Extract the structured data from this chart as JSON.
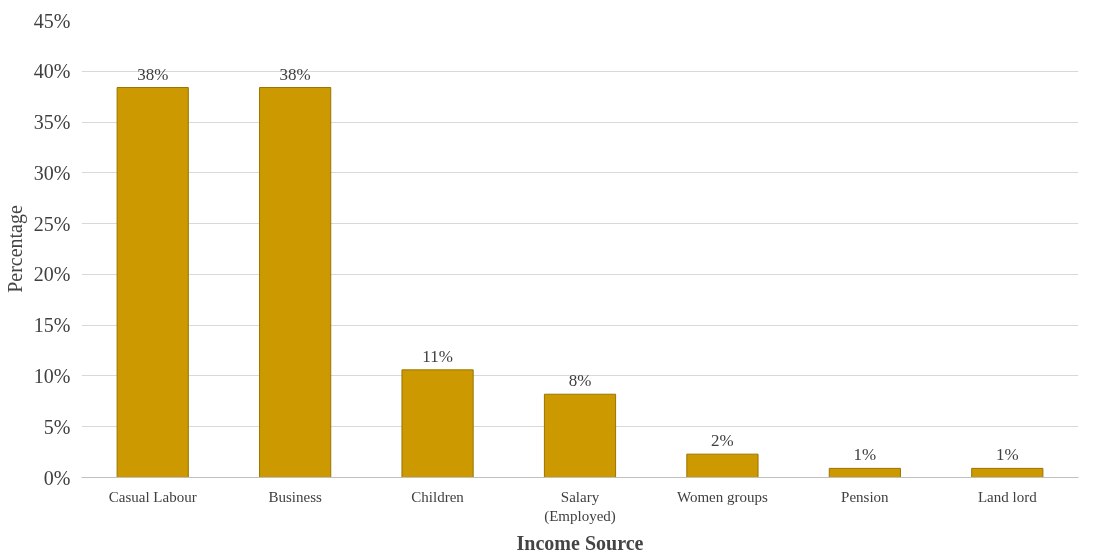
{
  "chart_data": {
    "type": "bar",
    "xlabel": "Income Source",
    "ylabel": "Percentage",
    "categories": [
      "Casual Labour",
      "Business",
      "Children",
      "Salary\n(Employed)",
      "Women groups",
      "Pension",
      "Land lord"
    ],
    "values": [
      38.4,
      38.4,
      10.6,
      8.2,
      2.3,
      0.9,
      0.9
    ],
    "value_labels": [
      "38%",
      "38%",
      "11%",
      "8%",
      "2%",
      "1%",
      "1%"
    ],
    "color": "#cc9900",
    "ylim": [
      0,
      45
    ],
    "yticks": [
      {
        "value": 0,
        "label": "0%"
      },
      {
        "value": 5,
        "label": "5%"
      },
      {
        "value": 10,
        "label": "10%"
      },
      {
        "value": 15,
        "label": "15%"
      },
      {
        "value": 20,
        "label": "20%"
      },
      {
        "value": 25,
        "label": "25%"
      },
      {
        "value": 30,
        "label": "30%"
      },
      {
        "value": 35,
        "label": "35%"
      },
      {
        "value": 40,
        "label": "40%"
      },
      {
        "value": 45,
        "label": "45%"
      }
    ],
    "grid": "y"
  }
}
